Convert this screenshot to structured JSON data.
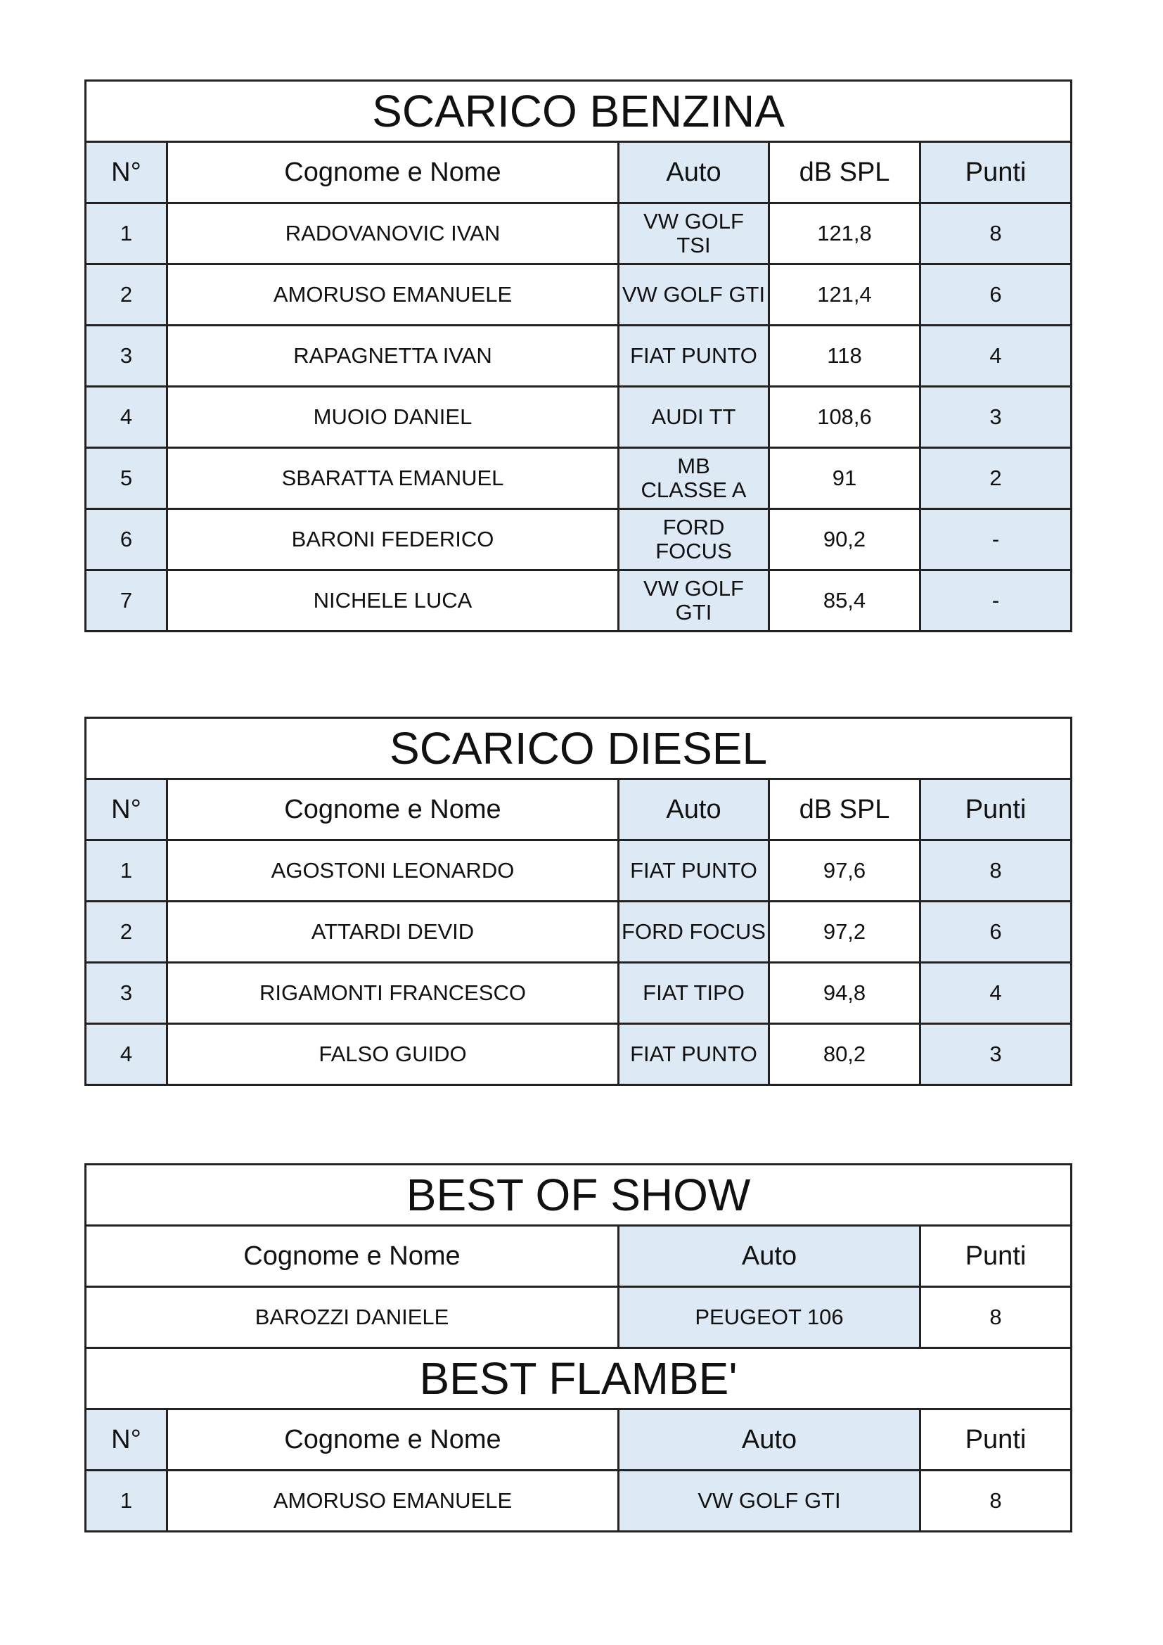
{
  "colors": {
    "highlight": "#dde9f5",
    "border": "#222222"
  },
  "benzina": {
    "title": "SCARICO BENZINA",
    "headers": [
      "N°",
      "Cognome e Nome",
      "Auto",
      "dB SPL",
      "Punti"
    ],
    "rows": [
      [
        "1",
        "RADOVANOVIC IVAN",
        "VW GOLF TSI",
        "121,8",
        "8"
      ],
      [
        "2",
        "AMORUSO EMANUELE",
        "VW GOLF GTI",
        "121,4",
        "6"
      ],
      [
        "3",
        "RAPAGNETTA IVAN",
        "FIAT PUNTO",
        "118",
        "4"
      ],
      [
        "4",
        "MUOIO DANIEL",
        "AUDI TT",
        "108,6",
        "3"
      ],
      [
        "5",
        "SBARATTA EMANUEL",
        "MB CLASSE A",
        "91",
        "2"
      ],
      [
        "6",
        "BARONI FEDERICO",
        "FORD FOCUS",
        "90,2",
        "-"
      ],
      [
        "7",
        "NICHELE LUCA",
        "VW GOLF GTI",
        "85,4",
        "-"
      ]
    ]
  },
  "diesel": {
    "title": "SCARICO DIESEL",
    "headers": [
      "N°",
      "Cognome e Nome",
      "Auto",
      "dB SPL",
      "Punti"
    ],
    "rows": [
      [
        "1",
        "AGOSTONI LEONARDO",
        "FIAT PUNTO",
        "97,6",
        "8"
      ],
      [
        "2",
        "ATTARDI DEVID",
        "FORD FOCUS",
        "97,2",
        "6"
      ],
      [
        "3",
        "RIGAMONTI FRANCESCO",
        "FIAT TIPO",
        "94,8",
        "4"
      ],
      [
        "4",
        "FALSO GUIDO",
        "FIAT PUNTO",
        "80,2",
        "3"
      ]
    ]
  },
  "best_of_show": {
    "title": "BEST OF SHOW",
    "headers": [
      "Cognome e Nome",
      "Auto",
      "Punti"
    ],
    "rows": [
      [
        "BAROZZI DANIELE",
        "PEUGEOT 106",
        "8"
      ]
    ]
  },
  "best_flambe": {
    "title": "BEST FLAMBE'",
    "headers": [
      "N°",
      "Cognome e Nome",
      "Auto",
      "Punti"
    ],
    "rows": [
      [
        "1",
        "AMORUSO EMANUELE",
        "VW GOLF GTI",
        "8"
      ]
    ]
  }
}
